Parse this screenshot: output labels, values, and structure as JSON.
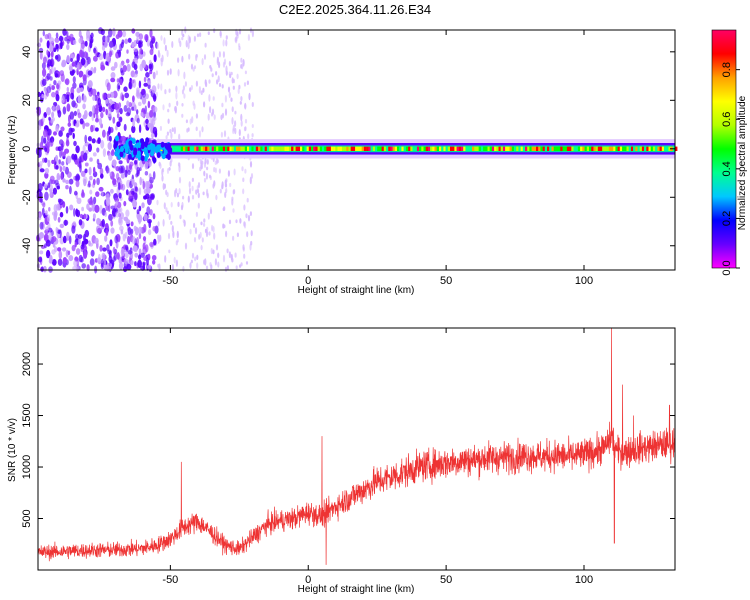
{
  "title": "C2E2.2025.364.11.26.E34",
  "chart_data": [
    {
      "type": "heatmap",
      "xlabel": "Height of straight line (km)",
      "ylabel": "Frequency (Hz)",
      "xlim": [
        -98,
        133
      ],
      "ylim": [
        -50,
        49
      ],
      "xticks": [
        -50,
        0,
        50,
        100
      ],
      "yticks": [
        -40,
        -20,
        0,
        20,
        40
      ],
      "colorbar": {
        "label": "Normalized spectral amplitude",
        "range": [
          0,
          0.96
        ],
        "ticks": [
          0.0,
          0.2,
          0.4,
          0.6,
          0.8
        ],
        "tick_labels": [
          "0.0",
          "0.2",
          "0.4",
          "0.6",
          "0.8"
        ],
        "colormap": [
          "#ff00ff",
          "#6600ff",
          "#0000ff",
          "#00c8ff",
          "#00ff90",
          "#00ff00",
          "#b4ff00",
          "#ffff00",
          "#ffa000",
          "#ff0000",
          "#ff0064"
        ]
      },
      "features": [
        {
          "description": "broadband noise scatter",
          "x_range": [
            -98,
            -55
          ],
          "amplitude": 0.12
        },
        {
          "description": "sparse noise streaks",
          "x_range": [
            -55,
            -20
          ],
          "amplitude": 0.03
        },
        {
          "description": "carrier band near 0 Hz",
          "x_range": [
            -55,
            133
          ],
          "freq_halfwidth": 4,
          "peak_amplitude": 0.9
        }
      ],
      "grid": false,
      "legend": "colorbar-right"
    },
    {
      "type": "line",
      "xlabel": "Height of straight line (km)",
      "ylabel": "SNR (10 * v/v)",
      "xlim": [
        -98,
        133
      ],
      "ylim": [
        0,
        2350
      ],
      "xticks": [
        -50,
        0,
        50,
        100
      ],
      "yticks": [
        500,
        1000,
        1500,
        2000
      ],
      "series": [
        {
          "color": "#ee3333",
          "x": [
            -98,
            -90,
            -80,
            -70,
            -60,
            -55,
            -50,
            -45,
            -40,
            -35,
            -30,
            -25,
            -20,
            -15,
            -10,
            -5,
            0,
            5,
            10,
            15,
            20,
            25,
            30,
            35,
            40,
            45,
            50,
            55,
            60,
            65,
            70,
            75,
            80,
            85,
            90,
            95,
            100,
            105,
            108,
            110,
            112,
            115,
            120,
            125,
            130,
            133
          ],
          "y": [
            170,
            180,
            190,
            195,
            210,
            240,
            300,
            420,
            470,
            360,
            240,
            200,
            320,
            440,
            480,
            500,
            560,
            520,
            620,
            700,
            780,
            860,
            900,
            950,
            1000,
            1020,
            1040,
            1060,
            1070,
            1090,
            1090,
            1100,
            1110,
            1100,
            1110,
            1100,
            1120,
            1160,
            1200,
            1300,
            1150,
            1150,
            1180,
            1200,
            1220,
            1230
          ],
          "spikes": [
            {
              "x": -46,
              "y": 1050
            },
            {
              "x": 5,
              "y": 1300
            },
            {
              "x": 6.5,
              "y": 50
            },
            {
              "x": 110,
              "y": 2350
            },
            {
              "x": 111,
              "y": 260
            },
            {
              "x": 114,
              "y": 1800
            },
            {
              "x": 118,
              "y": 1500
            },
            {
              "x": 131,
              "y": 1600
            }
          ],
          "noise_amplitude": 260
        }
      ],
      "grid": false,
      "legend": "none"
    }
  ]
}
